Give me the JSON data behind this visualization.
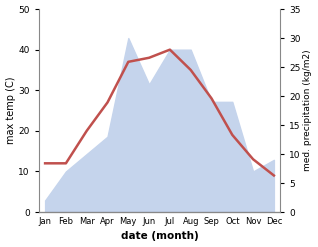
{
  "months": [
    "Jan",
    "Feb",
    "Mar",
    "Apr",
    "May",
    "Jun",
    "Jul",
    "Aug",
    "Sep",
    "Oct",
    "Nov",
    "Dec"
  ],
  "month_indices": [
    0,
    1,
    2,
    3,
    4,
    5,
    6,
    7,
    8,
    9,
    10,
    11
  ],
  "temperature": [
    12,
    12,
    20,
    27,
    37,
    38,
    40,
    35,
    28,
    19,
    13,
    9
  ],
  "precipitation": [
    2,
    7,
    10,
    13,
    30,
    22,
    28,
    28,
    19,
    19,
    7,
    9
  ],
  "temp_color": "#c0504d",
  "precip_color": "#c5d4ec",
  "temp_ylim": [
    0,
    50
  ],
  "precip_ylim": [
    0,
    35
  ],
  "temp_yticks": [
    0,
    10,
    20,
    30,
    40,
    50
  ],
  "precip_yticks": [
    0,
    5,
    10,
    15,
    20,
    25,
    30,
    35
  ],
  "xlabel": "date (month)",
  "ylabel_left": "max temp (C)",
  "ylabel_right": "med. precipitation (kg/m2)",
  "bg_color": "#ffffff"
}
